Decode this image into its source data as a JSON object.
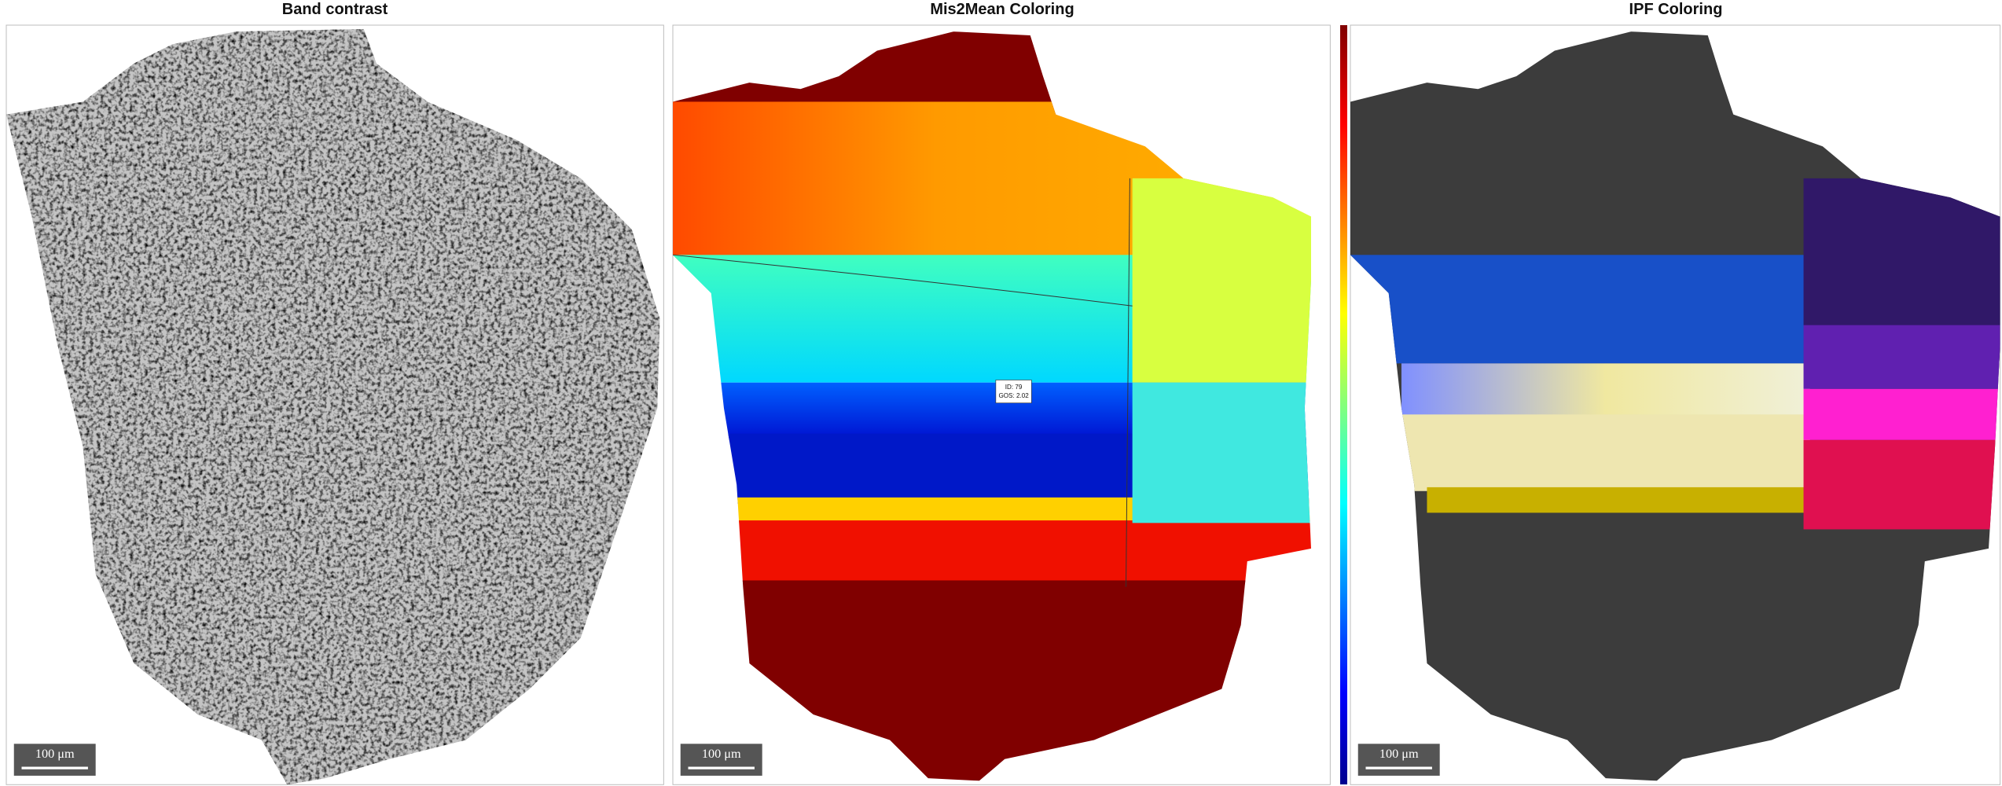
{
  "panels": [
    {
      "title": "Band contrast",
      "scale_bar": "100 μm"
    },
    {
      "title": "Mis2Mean Coloring",
      "scale_bar": "100 μm"
    },
    {
      "title": "IPF Coloring",
      "scale_bar": "100 μm"
    }
  ],
  "data_tip": [
    "ID: 79",
    "GOS: 2.02"
  ]
}
